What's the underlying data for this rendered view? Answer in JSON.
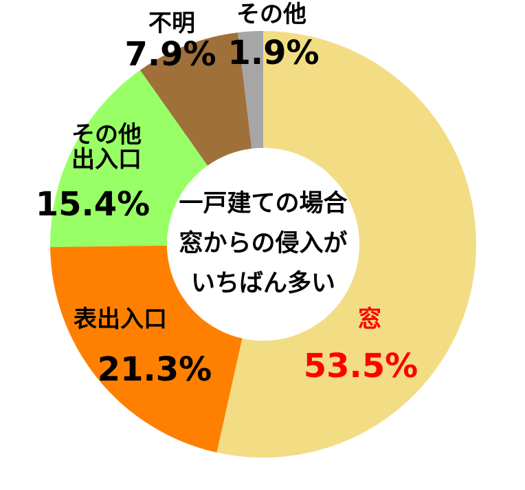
{
  "chart_data": {
    "type": "donut",
    "annotation": "一戸建ての場合\n窓からの侵入が\nいちばん多い",
    "categories": [
      "窓",
      "表出入口",
      "その他\n出入口",
      "不明",
      "その他"
    ],
    "values": [
      53.5,
      21.3,
      15.4,
      7.9,
      1.9
    ],
    "value_labels": [
      "53.5%",
      "21.3%",
      "15.4%",
      "7.9%",
      "1.9%"
    ],
    "colors": [
      "#f2dd85",
      "#ff8000",
      "#99ff66",
      "#a0703a",
      "#a6a6a6"
    ],
    "label_colors": [
      "#ff0000",
      "#000000",
      "#000000",
      "#000000",
      "#000000"
    ]
  }
}
